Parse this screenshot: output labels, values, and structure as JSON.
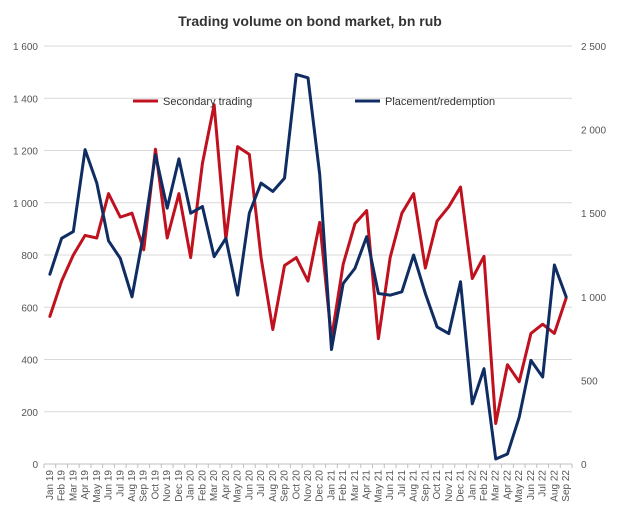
{
  "chart_data": {
    "type": "line",
    "title": "Trading volume on bond market, bn rub",
    "legend_position": "top-center",
    "categories": [
      "Jan 19",
      "Feb 19",
      "Mar 19",
      "Apr 19",
      "May 19",
      "Jun 19",
      "Jul 19",
      "Aug 19",
      "Sep 19",
      "Oct 19",
      "Nov 19",
      "Dec 19",
      "Jan 20",
      "Feb 20",
      "Mar 20",
      "Apr 20",
      "May 20",
      "Jun 20",
      "Jul 20",
      "Aug 20",
      "Sep 20",
      "Oct 20",
      "Nov 20",
      "Dec 20",
      "Jan 21",
      "Feb 21",
      "Mar 21",
      "Apr 21",
      "May 21",
      "Jun 21",
      "Jul 21",
      "Aug 21",
      "Sep 21",
      "Oct 21",
      "Nov 21",
      "Dec 21",
      "Jan 22",
      "Feb 22",
      "Mar 22",
      "Apr 22",
      "May 22",
      "Jun 22",
      "Jul 22",
      "Aug 22",
      "Sep 22"
    ],
    "x_tick_labels": [
      "Jan 19",
      "Feb 19",
      "Mar 19",
      "Apr 19",
      "May 19",
      "Jun 19",
      "Jul 19",
      "Aug 19",
      "Sep 19",
      "Oct 19",
      "Nov 19",
      "Dec 19",
      "Jan 20",
      "Feb 20",
      "Mar 20",
      "Apr 20",
      "May 20",
      "Jun 20",
      "Jul 20",
      "Aug 20",
      "Sep 20",
      "Oct 20",
      "Nov 20",
      "Dec 20",
      "Jan 21",
      "Feb 21",
      "Mar 21",
      "Apr 21",
      "May 21",
      "Jun 21",
      "Jul 21",
      "Aug 21",
      "Sep 21",
      "Oct 21",
      "Nov 21",
      "Dec 21",
      "Jan 22",
      "Feb 22",
      "Mar 22",
      "Apr 22",
      "May 22",
      "Jun 22",
      "Jul 22",
      "Aug 22",
      "Sep 22"
    ],
    "y_left": {
      "min": 0,
      "max": 1600,
      "ticks": [
        0,
        200,
        400,
        600,
        800,
        1000,
        1200,
        1400,
        1600
      ],
      "tick_labels": [
        "0",
        "200",
        "400",
        "600",
        "800",
        "1 000",
        "1 200",
        "1 400",
        "1 600"
      ]
    },
    "y_right": {
      "min": 0,
      "max": 2500,
      "ticks": [
        0,
        500,
        1000,
        1500,
        2000,
        2500
      ],
      "tick_labels": [
        "0",
        "500",
        "1 000",
        "1 500",
        "2 000",
        "2 500"
      ]
    },
    "series": [
      {
        "name": "Secondary trading",
        "axis": "left",
        "color": "#c0111f",
        "values": [
          565,
          700,
          800,
          875,
          865,
          1035,
          945,
          960,
          820,
          1205,
          865,
          1035,
          790,
          1150,
          1375,
          860,
          1215,
          1185,
          790,
          515,
          760,
          790,
          700,
          925,
          480,
          765,
          920,
          970,
          480,
          790,
          960,
          1035,
          750,
          930,
          985,
          1060,
          710,
          795,
          155,
          380,
          315,
          500,
          535,
          500,
          635
        ]
      },
      {
        "name": "Placement/redemption",
        "axis": "right",
        "color": "#0f2d63",
        "values": [
          1135,
          1350,
          1390,
          1880,
          1680,
          1335,
          1230,
          1000,
          1380,
          1850,
          1530,
          1825,
          1500,
          1540,
          1240,
          1350,
          1010,
          1500,
          1680,
          1630,
          1710,
          2330,
          2310,
          1730,
          685,
          1080,
          1170,
          1360,
          1020,
          1010,
          1030,
          1250,
          1020,
          820,
          780,
          1090,
          360,
          570,
          30,
          60,
          280,
          620,
          520,
          1190,
          1000
        ]
      }
    ]
  }
}
